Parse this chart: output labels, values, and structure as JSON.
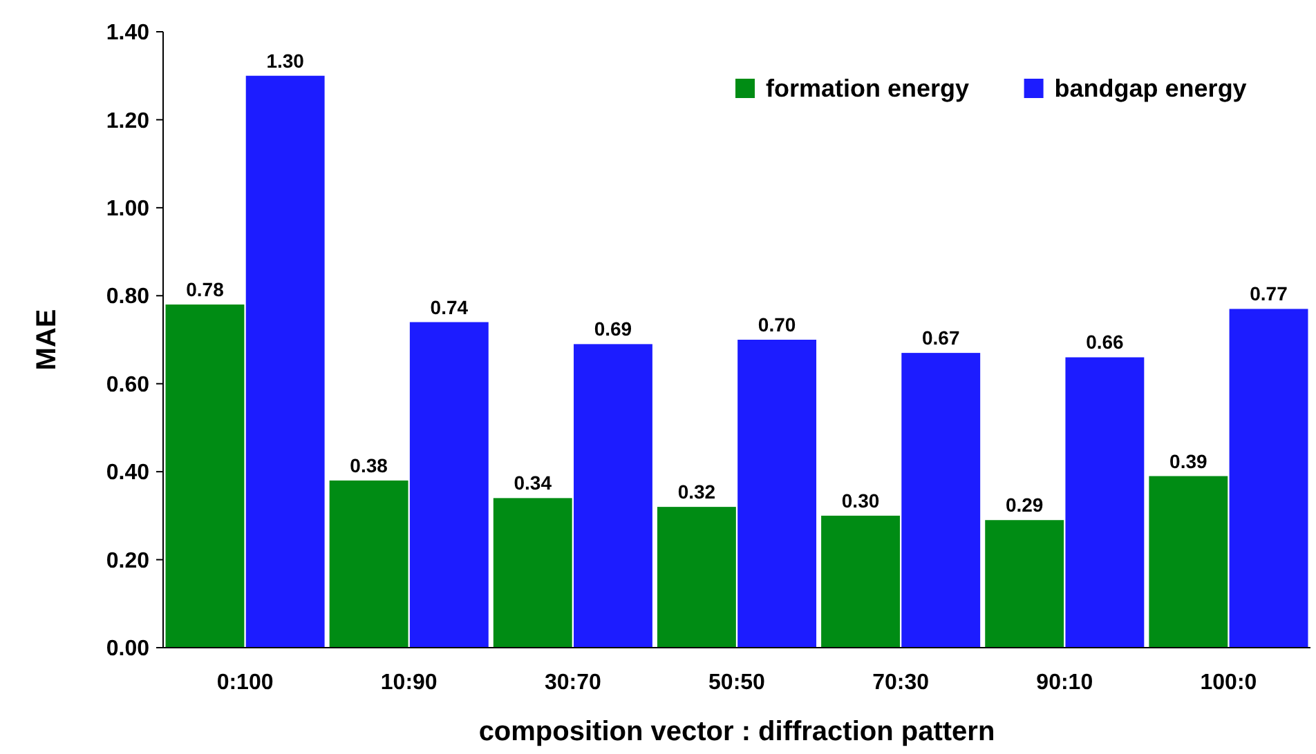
{
  "chart_data": {
    "type": "bar",
    "xlabel": "composition vector : diffraction pattern",
    "ylabel": "MAE",
    "categories": [
      "0:100",
      "10:90",
      "30:70",
      "50:50",
      "70:30",
      "90:10",
      "100:0"
    ],
    "series": [
      {
        "name": "formation energy",
        "color": "#008c14",
        "values": [
          0.78,
          0.38,
          0.34,
          0.32,
          0.3,
          0.29,
          0.39
        ],
        "value_labels": [
          "0.78",
          "0.38",
          "0.34",
          "0.32",
          "0.30",
          "0.29",
          "0.39"
        ]
      },
      {
        "name": "bandgap energy",
        "color": "#1c1cff",
        "values": [
          1.3,
          0.74,
          0.69,
          0.7,
          0.67,
          0.66,
          0.77
        ],
        "value_labels": [
          "1.30",
          "0.74",
          "0.69",
          "0.70",
          "0.67",
          "0.66",
          "0.77"
        ]
      }
    ],
    "ylim": [
      0,
      1.4
    ],
    "yticks": [
      {
        "value": 0,
        "label": "0.00"
      },
      {
        "value": 0.2,
        "label": "0.20"
      },
      {
        "value": 0.4,
        "label": "0.40"
      },
      {
        "value": 0.6,
        "label": "0.60"
      },
      {
        "value": 0.8,
        "label": "0.80"
      },
      {
        "value": 1,
        "label": "1.00"
      },
      {
        "value": 1.2,
        "label": "1.20"
      },
      {
        "value": 1.4,
        "label": "1.40"
      }
    ],
    "grid": false,
    "legend": "top right"
  }
}
